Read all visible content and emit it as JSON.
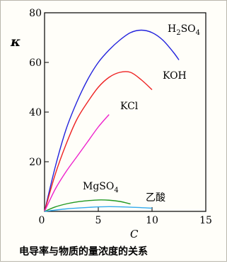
{
  "chart_data": {
    "type": "line",
    "title": "电导率与物质的量浓度的关系",
    "xlabel": "C",
    "ylabel": "κ",
    "xlim": [
      0,
      15
    ],
    "ylim": [
      0,
      80
    ],
    "xticks": [
      "0",
      "5",
      "10",
      "15"
    ],
    "yticks": [
      "20",
      "40",
      "60",
      "80"
    ],
    "grid": false,
    "series": [
      {
        "name": "H2SO4",
        "color": "#2222dd",
        "label_base": "H",
        "label_sub1": "2",
        "label_mid": "SO",
        "label_sub2": "4",
        "x": [
          0,
          1,
          2,
          3,
          4,
          5,
          6,
          7,
          8,
          9,
          10,
          11,
          12,
          12.5
        ],
        "y": [
          0,
          18,
          33,
          44,
          53,
          60,
          65,
          69,
          72,
          73,
          72,
          69,
          64,
          61
        ]
      },
      {
        "name": "KOH",
        "color": "#ee2222",
        "label": "KOH",
        "x": [
          0,
          1,
          2,
          3,
          4,
          5,
          6,
          7,
          8,
          9,
          10
        ],
        "y": [
          0,
          15,
          27,
          37,
          44,
          50,
          54,
          56,
          56,
          53,
          49
        ]
      },
      {
        "name": "KCl",
        "color": "#ee22cc",
        "label": "KCl",
        "x": [
          0,
          1,
          2,
          3,
          4,
          5,
          6
        ],
        "y": [
          0,
          9,
          16,
          22,
          28,
          34,
          39
        ]
      },
      {
        "name": "MgSO4",
        "color": "#229922",
        "label_base": "MgSO",
        "label_sub": "4",
        "x": [
          0,
          1,
          2,
          3,
          4,
          5,
          6,
          7,
          8
        ],
        "y": [
          0,
          1.8,
          3,
          3.8,
          4.3,
          4.6,
          4.5,
          4,
          3
        ]
      },
      {
        "name": "乙酸",
        "color": "#33aaee",
        "label": "乙酸",
        "x": [
          0,
          2,
          4,
          6,
          8,
          10
        ],
        "y": [
          0,
          1,
          1.6,
          1.9,
          1.7,
          1.3
        ]
      }
    ]
  }
}
